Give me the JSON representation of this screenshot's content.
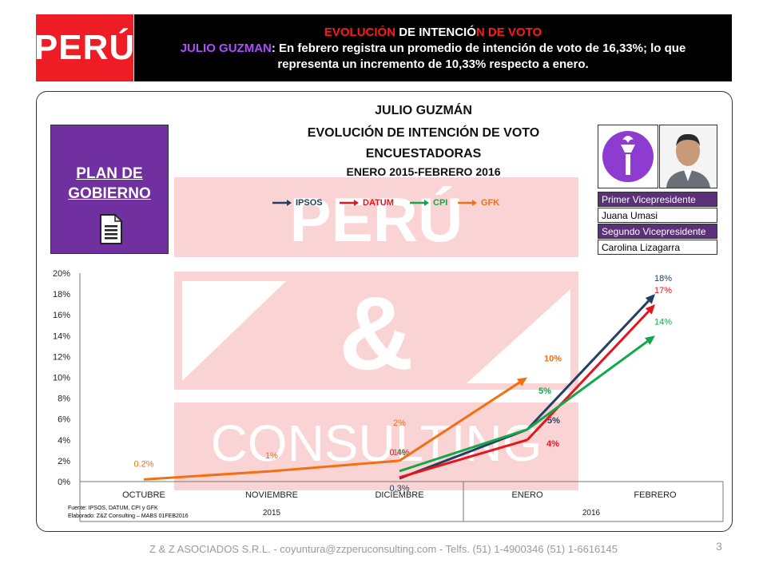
{
  "header": {
    "country": "PERÚ",
    "line1": [
      {
        "text": "EVOLUCIÓ",
        "color": "red"
      },
      {
        "text": "N ",
        "color": "white"
      },
      {
        "text": "DE INTENCIÓ",
        "color": "white"
      },
      {
        "text": "N DE VOTO",
        "color": "red"
      }
    ],
    "line2_name": "JULIO GUZMAN",
    "line2_rest": ": En febrero registra un promedio de intención de voto de 16,33%;  lo que",
    "line3": "representa un incremento de 10,33% respecto a enero."
  },
  "titles": {
    "candidate": "JULIO GUZMÁN",
    "subtitle": "EVOLUCIÓN  DE INTENCIÓN DE VOTO",
    "pollsters": "ENCUESTADORAS",
    "period": "ENERO 2015-FEBRERO 2016"
  },
  "plan_link": {
    "line1": "PLAN DE",
    "line2": "GOBIERNO"
  },
  "running_mates": {
    "first_label": "Primer Vicepresidente",
    "first_name": "Juana Umasi",
    "second_label": "Segundo Vicepresidente",
    "second_name": "Carolina Lizagarra"
  },
  "chart_data": {
    "type": "line",
    "categories": [
      "OCTUBRE",
      "NOVIEMBRE",
      "DICIEMBRE",
      "ENERO",
      "FEBRERO"
    ],
    "groups": [
      {
        "label": "2015",
        "span": [
          0,
          2
        ]
      },
      {
        "label": "2016",
        "span": [
          3,
          4
        ]
      }
    ],
    "y_ticks": [
      "0%",
      "2%",
      "4%",
      "6%",
      "8%",
      "10%",
      "12%",
      "14%",
      "16%",
      "18%",
      "20%"
    ],
    "ylim": [
      0,
      20
    ],
    "series": [
      {
        "name": "IPSOS",
        "color": "#243f60",
        "values": [
          null,
          null,
          0.3,
          5,
          18
        ],
        "labels": [
          null,
          null,
          "0.3%",
          "5%",
          "18%"
        ]
      },
      {
        "name": "DATUM",
        "color": "#e8141c",
        "values": [
          null,
          null,
          0.4,
          4,
          17
        ],
        "labels": [
          null,
          null,
          "0.4%",
          "4%",
          "17%"
        ]
      },
      {
        "name": "CPI",
        "color": "#14a64a",
        "values": [
          null,
          null,
          1,
          5,
          14
        ],
        "labels": [
          null,
          null,
          "1%",
          "5%",
          "14%"
        ]
      },
      {
        "name": "GFK",
        "color": "#f26f12",
        "values": [
          0.2,
          1,
          2,
          10,
          null
        ],
        "labels": [
          "0.2%",
          "1%",
          "2%",
          "10%",
          null
        ]
      }
    ]
  },
  "source": {
    "line1": "Fuente: IPSOS, DATUM, CPI y GFK",
    "line2": "Elaborado: Z&Z Consulting – MABS 01FEB2016"
  },
  "footer": {
    "text": "Z & Z ASOCIADOS S.R.L. - coyuntura@zzperuconsulting.com  - Telfs. (51) 1-4900346  (51) 1-6616145",
    "page": "3"
  },
  "watermark": {
    "line1": "PERÚ",
    "line2": "&",
    "line3": "CONSULTING"
  }
}
